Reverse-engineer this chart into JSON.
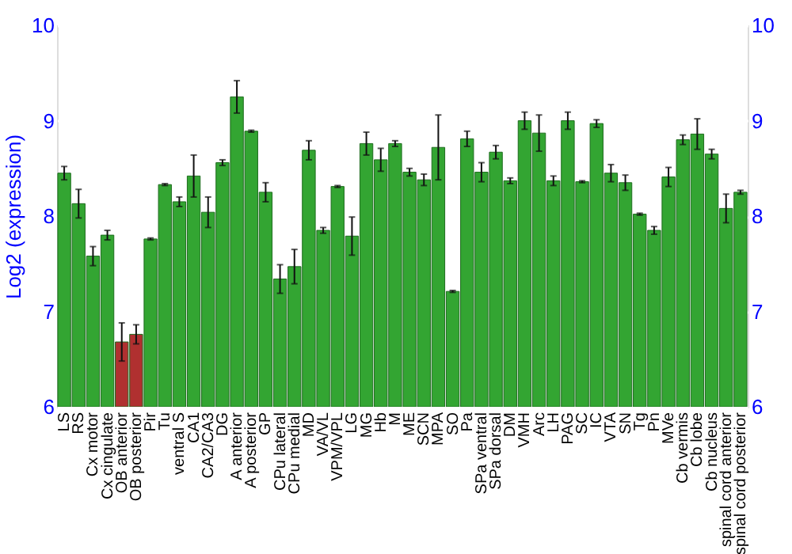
{
  "chart_data": {
    "type": "bar",
    "ylabel": "Log2 (expression)",
    "categories": [
      "LS",
      "RS",
      "Cx motor",
      "Cx cingulate",
      "OB anterior",
      "OB posterior",
      "Pir",
      "Tu",
      "ventral S",
      "CA1",
      "CA2/CA3",
      "DG",
      "A anterior",
      "A posterior",
      "GP",
      "CPu lateral",
      "CPu medial",
      "MD",
      "VA/VL",
      "VPM/VPL",
      "LG",
      "MG",
      "Hb",
      "M",
      "ME",
      "SCN",
      "MPA",
      "SO",
      "Pa",
      "SPa ventral",
      "SPa dorsal",
      "DM",
      "VMH",
      "Arc",
      "LH",
      "PAG",
      "SC",
      "IC",
      "VTA",
      "SN",
      "Tg",
      "Pn",
      "MVe",
      "Cb vermis",
      "Cb lobe",
      "Cb nucleus",
      "spinal cord anterior",
      "spinal cord posterior"
    ],
    "values": [
      8.45,
      8.13,
      7.58,
      7.8,
      6.68,
      6.76,
      7.76,
      8.33,
      8.15,
      8.42,
      8.04,
      8.56,
      9.25,
      8.89,
      8.25,
      7.34,
      7.47,
      8.69,
      7.85,
      8.31,
      7.79,
      8.76,
      8.59,
      8.76,
      8.46,
      8.38,
      8.72,
      7.21,
      8.81,
      8.46,
      8.67,
      8.37,
      9.0,
      8.87,
      8.37,
      9.0,
      8.36,
      8.97,
      8.45,
      8.35,
      8.02,
      7.85,
      8.41,
      8.8,
      8.86,
      8.65,
      8.08,
      8.25
    ],
    "errors": [
      0.07,
      0.15,
      0.1,
      0.05,
      0.2,
      0.1,
      0.01,
      0.01,
      0.05,
      0.22,
      0.16,
      0.03,
      0.17,
      0.01,
      0.1,
      0.15,
      0.18,
      0.1,
      0.03,
      0.01,
      0.2,
      0.12,
      0.12,
      0.03,
      0.04,
      0.06,
      0.34,
      0.01,
      0.08,
      0.1,
      0.07,
      0.03,
      0.09,
      0.19,
      0.05,
      0.09,
      0.01,
      0.04,
      0.09,
      0.08,
      0.01,
      0.04,
      0.1,
      0.05,
      0.16,
      0.05,
      0.15,
      0.02
    ],
    "colors": [
      "#33a532",
      "#33a532",
      "#33a532",
      "#33a532",
      "#b03030",
      "#b03030",
      "#33a532",
      "#33a532",
      "#33a532",
      "#33a532",
      "#33a532",
      "#33a532",
      "#33a532",
      "#33a532",
      "#33a532",
      "#33a532",
      "#33a532",
      "#33a532",
      "#33a532",
      "#33a532",
      "#33a532",
      "#33a532",
      "#33a532",
      "#33a532",
      "#33a532",
      "#33a532",
      "#33a532",
      "#33a532",
      "#33a532",
      "#33a532",
      "#33a532",
      "#33a532",
      "#33a532",
      "#33a532",
      "#33a532",
      "#33a532",
      "#33a532",
      "#33a532",
      "#33a532",
      "#33a532",
      "#33a532",
      "#33a532",
      "#33a532",
      "#33a532",
      "#33a532",
      "#33a532",
      "#33a532",
      "#33a532"
    ],
    "ylim": [
      6,
      10
    ],
    "yticks": [
      6,
      7,
      8,
      9,
      10
    ],
    "y2lim": [
      6,
      10
    ],
    "y2ticks": [
      6,
      7,
      8,
      9,
      10
    ],
    "grid": "y"
  }
}
